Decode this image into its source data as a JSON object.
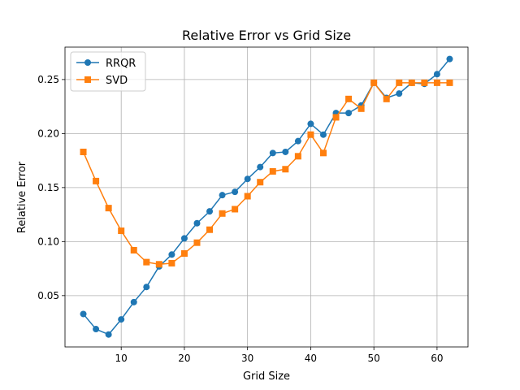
{
  "chart_data": {
    "type": "line",
    "title": "Relative Error vs Grid Size",
    "xlabel": "Grid Size",
    "ylabel": "Relative Error",
    "xlim": [
      1.1,
      64.9
    ],
    "ylim": [
      0.0025,
      0.28
    ],
    "xticks": [
      10,
      20,
      30,
      40,
      50,
      60
    ],
    "xtick_labels": [
      "10",
      "20",
      "30",
      "40",
      "50",
      "60"
    ],
    "yticks": [
      0.05,
      0.1,
      0.15,
      0.2,
      0.25
    ],
    "ytick_labels": [
      "0.05",
      "0.10",
      "0.15",
      "0.20",
      "0.25"
    ],
    "grid": true,
    "legend_position": "top-left",
    "x": [
      4,
      6,
      8,
      10,
      12,
      14,
      16,
      18,
      20,
      22,
      24,
      26,
      28,
      30,
      32,
      34,
      36,
      38,
      40,
      42,
      44,
      46,
      48,
      50,
      52,
      54,
      56,
      58,
      60,
      62
    ],
    "series": [
      {
        "name": "RRQR",
        "color": "#1f77b4",
        "marker": "circle",
        "values": [
          0.033,
          0.019,
          0.014,
          0.028,
          0.044,
          0.058,
          0.077,
          0.088,
          0.103,
          0.117,
          0.128,
          0.143,
          0.146,
          0.158,
          0.169,
          0.182,
          0.183,
          0.193,
          0.209,
          0.199,
          0.219,
          0.219,
          0.226,
          0.247,
          0.233,
          0.237,
          0.247,
          0.246,
          0.255,
          0.269
        ]
      },
      {
        "name": "SVD",
        "color": "#ff7f0e",
        "marker": "square",
        "values": [
          0.183,
          0.156,
          0.131,
          0.11,
          0.092,
          0.081,
          0.079,
          0.08,
          0.089,
          0.099,
          0.111,
          0.126,
          0.13,
          0.142,
          0.155,
          0.165,
          0.167,
          0.179,
          0.199,
          0.182,
          0.215,
          0.232,
          0.223,
          0.247,
          0.232,
          0.247,
          0.247,
          0.247,
          0.247,
          0.247
        ]
      }
    ]
  }
}
